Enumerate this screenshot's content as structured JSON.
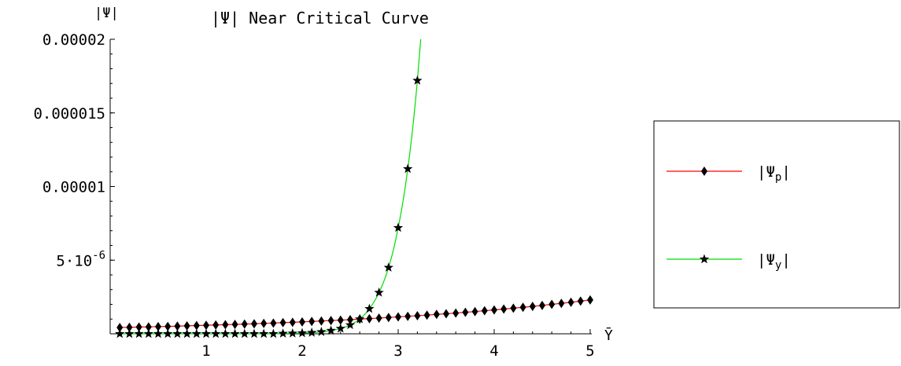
{
  "chart_data": {
    "type": "line",
    "title": "|Ψ| Near Critical Curve",
    "ylabel": "|Ψ|",
    "xlabel": "Ȳ",
    "xlim": [
      0,
      5
    ],
    "ylim": [
      0,
      2e-05
    ],
    "x_ticks": [
      {
        "value": 1,
        "label": "1"
      },
      {
        "value": 2,
        "label": "2"
      },
      {
        "value": 3,
        "label": "3"
      },
      {
        "value": 4,
        "label": "4"
      },
      {
        "value": 5,
        "label": "5"
      }
    ],
    "y_ticks": [
      {
        "value": 5e-06,
        "label": "5·10",
        "exp": "-6"
      },
      {
        "value": 1e-05,
        "label": "0.00001"
      },
      {
        "value": 1.5e-05,
        "label": "0.000015"
      },
      {
        "value": 2e-05,
        "label": "0.00002"
      }
    ],
    "grid": false,
    "legend_position": "right",
    "series": [
      {
        "name": "|Ψp|",
        "name_base": "|Ψ",
        "name_sub": "p",
        "name_end": "|",
        "color": "#ff0000",
        "marker": "diamond",
        "x": [
          0.1,
          0.2,
          0.3,
          0.4,
          0.5,
          0.6,
          0.7,
          0.8,
          0.9,
          1.0,
          1.1,
          1.2,
          1.3,
          1.4,
          1.5,
          1.6,
          1.7,
          1.8,
          1.9,
          2.0,
          2.1,
          2.2,
          2.3,
          2.4,
          2.5,
          2.6,
          2.7,
          2.8,
          2.9,
          3.0,
          3.1,
          3.2,
          3.3,
          3.4,
          3.5,
          3.6,
          3.7,
          3.8,
          3.9,
          4.0,
          4.1,
          4.2,
          4.3,
          4.4,
          4.5,
          4.6,
          4.7,
          4.8,
          4.9,
          5.0
        ],
        "values": [
          4.3e-07,
          4.4e-07,
          4.6e-07,
          4.7e-07,
          4.9e-07,
          5e-07,
          5.2e-07,
          5.4e-07,
          5.6e-07,
          5.8e-07,
          6e-07,
          6.2e-07,
          6.4e-07,
          6.6e-07,
          6.8e-07,
          7.1e-07,
          7.3e-07,
          7.6e-07,
          7.8e-07,
          8.1e-07,
          8.4e-07,
          8.7e-07,
          9e-07,
          9.3e-07,
          9.6e-07,
          1e-06,
          1.03e-06,
          1.07e-06,
          1.11e-06,
          1.15e-06,
          1.19e-06,
          1.23e-06,
          1.27e-06,
          1.32e-06,
          1.36e-06,
          1.41e-06,
          1.46e-06,
          1.51e-06,
          1.57e-06,
          1.62e-06,
          1.68e-06,
          1.74e-06,
          1.8e-06,
          1.86e-06,
          1.93e-06,
          2e-06,
          2.07e-06,
          2.14e-06,
          2.22e-06,
          2.3e-06
        ]
      },
      {
        "name": "|Ψy|",
        "name_base": "|Ψ",
        "name_sub": "y",
        "name_end": "|",
        "color": "#00dd00",
        "marker": "star",
        "x": [
          0.1,
          0.2,
          0.3,
          0.4,
          0.5,
          0.6,
          0.7,
          0.8,
          0.9,
          1.0,
          1.1,
          1.2,
          1.3,
          1.4,
          1.5,
          1.6,
          1.7,
          1.8,
          1.9,
          2.0,
          2.1,
          2.2,
          2.3,
          2.4,
          2.5,
          2.6,
          2.7,
          2.8,
          2.9,
          3.0,
          3.1,
          3.2
        ],
        "values": [
          0,
          0,
          0,
          0,
          0,
          0,
          0,
          0,
          0,
          0,
          0,
          0,
          0,
          0,
          0,
          0,
          0,
          2e-08,
          3e-08,
          5e-08,
          8e-08,
          1.3e-07,
          2.2e-07,
          3.6e-07,
          6e-07,
          1e-06,
          1.7e-06,
          2.8e-06,
          4.5e-06,
          7.2e-06,
          1.12e-05,
          1.72e-05
        ]
      }
    ]
  }
}
